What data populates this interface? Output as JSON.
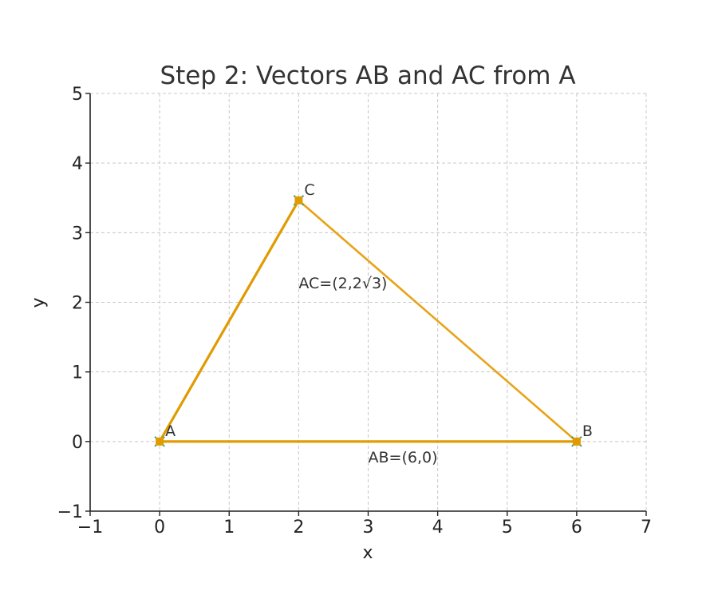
{
  "chart_data": {
    "type": "line",
    "title": "Step 2: Vectors AB and AC from A",
    "xlabel": "x",
    "ylabel": "y",
    "xlim": [
      -1,
      7
    ],
    "ylim": [
      -1,
      5
    ],
    "xticks": [
      -1,
      0,
      1,
      2,
      3,
      4,
      5,
      6,
      7
    ],
    "yticks": [
      -1,
      0,
      1,
      2,
      3,
      4,
      5
    ],
    "xtick_labels": [
      "−1",
      "0",
      "1",
      "2",
      "3",
      "4",
      "5",
      "6",
      "7"
    ],
    "ytick_labels": [
      "−1",
      "0",
      "1",
      "2",
      "3",
      "4",
      "5"
    ],
    "grid": true,
    "points": [
      {
        "name": "A",
        "x": 0,
        "y": 0
      },
      {
        "name": "B",
        "x": 6,
        "y": 0
      },
      {
        "name": "C",
        "x": 2,
        "y": 3.464
      }
    ],
    "segments": [
      {
        "from": "A",
        "to": "B"
      },
      {
        "from": "B",
        "to": "C"
      },
      {
        "from": "C",
        "to": "A"
      }
    ],
    "vectors": [
      {
        "label": "AB=(6,0)",
        "from": "A",
        "to": "B",
        "label_x": 3,
        "label_y": -0.22
      },
      {
        "label": "AC=(2,2√3)",
        "from": "A",
        "to": "C",
        "label_x": 2,
        "label_y": 2.28
      }
    ],
    "colors": {
      "line": "#E8A317",
      "vector": "#E09B00",
      "marker_edge": "#2E9E8F"
    }
  }
}
